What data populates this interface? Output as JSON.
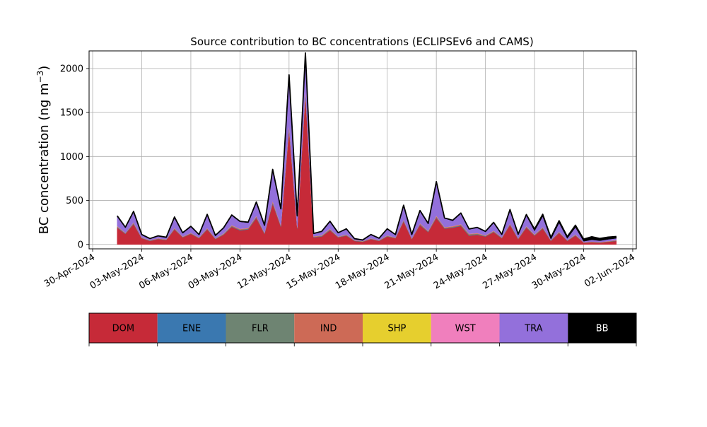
{
  "chart_data": {
    "type": "area",
    "stacked": true,
    "title": "Source contribution to BC concentrations (ECLIPSEv6 and CAMS)",
    "xlabel": "",
    "ylabel": "BC concentration (ng m",
    "ylabel_exponent": "−3",
    "ylabel_close": ")",
    "grid": true,
    "xlim": [
      "2024-04-30",
      "2024-06-02"
    ],
    "ylim": [
      -50,
      2200
    ],
    "yticks": [
      0,
      500,
      1000,
      1500,
      2000
    ],
    "xticks": [
      {
        "date": "2024-04-30",
        "label": "30-Apr-2024"
      },
      {
        "date": "2024-05-03",
        "label": "03-May-2024"
      },
      {
        "date": "2024-05-06",
        "label": "06-May-2024"
      },
      {
        "date": "2024-05-09",
        "label": "09-May-2024"
      },
      {
        "date": "2024-05-12",
        "label": "12-May-2024"
      },
      {
        "date": "2024-05-15",
        "label": "15-May-2024"
      },
      {
        "date": "2024-05-18",
        "label": "18-May-2024"
      },
      {
        "date": "2024-05-21",
        "label": "21-May-2024"
      },
      {
        "date": "2024-05-24",
        "label": "24-May-2024"
      },
      {
        "date": "2024-05-27",
        "label": "27-May-2024"
      },
      {
        "date": "2024-05-30",
        "label": "30-May-2024"
      },
      {
        "date": "2024-06-02",
        "label": "02-Jun-2024"
      }
    ],
    "x": [
      "2024-05-01 12:00",
      "2024-05-02 00:00",
      "2024-05-02 12:00",
      "2024-05-03 00:00",
      "2024-05-03 12:00",
      "2024-05-04 00:00",
      "2024-05-04 12:00",
      "2024-05-05 00:00",
      "2024-05-05 12:00",
      "2024-05-06 00:00",
      "2024-05-06 12:00",
      "2024-05-07 00:00",
      "2024-05-07 12:00",
      "2024-05-08 00:00",
      "2024-05-08 12:00",
      "2024-05-09 00:00",
      "2024-05-09 12:00",
      "2024-05-10 00:00",
      "2024-05-10 12:00",
      "2024-05-11 00:00",
      "2024-05-11 12:00",
      "2024-05-12 00:00",
      "2024-05-12 12:00",
      "2024-05-13 00:00",
      "2024-05-13 12:00",
      "2024-05-14 00:00",
      "2024-05-14 12:00",
      "2024-05-15 00:00",
      "2024-05-15 12:00",
      "2024-05-16 00:00",
      "2024-05-16 12:00",
      "2024-05-17 00:00",
      "2024-05-17 12:00",
      "2024-05-18 00:00",
      "2024-05-18 12:00",
      "2024-05-19 00:00",
      "2024-05-19 12:00",
      "2024-05-20 00:00",
      "2024-05-20 12:00",
      "2024-05-21 00:00",
      "2024-05-21 12:00",
      "2024-05-22 00:00",
      "2024-05-22 12:00",
      "2024-05-23 00:00",
      "2024-05-23 12:00",
      "2024-05-24 00:00",
      "2024-05-24 12:00",
      "2024-05-25 00:00",
      "2024-05-25 12:00",
      "2024-05-26 00:00",
      "2024-05-26 12:00",
      "2024-05-27 00:00",
      "2024-05-27 12:00",
      "2024-05-28 00:00",
      "2024-05-28 12:00",
      "2024-05-29 00:00",
      "2024-05-29 12:00",
      "2024-05-30 00:00",
      "2024-05-30 12:00",
      "2024-05-31 00:00",
      "2024-05-31 12:00",
      "2024-06-01 00:00"
    ],
    "series": [
      {
        "name": "DOM",
        "color": "#c62a38",
        "values": [
          190,
          120,
          230,
          70,
          40,
          60,
          50,
          170,
          80,
          120,
          70,
          170,
          60,
          110,
          200,
          160,
          170,
          300,
          120,
          460,
          200,
          1300,
          180,
          1700,
          80,
          90,
          160,
          80,
          100,
          40,
          30,
          60,
          40,
          90,
          70,
          260,
          60,
          220,
          140,
          300,
          180,
          190,
          210,
          100,
          110,
          90,
          140,
          70,
          220,
          60,
          190,
          100,
          180,
          40,
          130,
          40,
          100,
          20,
          25,
          20,
          30,
          40
        ]
      },
      {
        "name": "ENE",
        "color": "#3a78b0",
        "values": [
          5,
          3,
          5,
          2,
          2,
          2,
          2,
          4,
          2,
          3,
          2,
          4,
          2,
          3,
          4,
          4,
          4,
          6,
          3,
          8,
          4,
          14,
          4,
          18,
          3,
          3,
          4,
          2,
          3,
          2,
          2,
          2,
          2,
          3,
          2,
          5,
          2,
          5,
          3,
          6,
          4,
          4,
          4,
          3,
          3,
          3,
          3,
          2,
          4,
          2,
          4,
          3,
          4,
          2,
          3,
          2,
          3,
          1,
          1,
          1,
          1,
          2
        ]
      },
      {
        "name": "FLR",
        "color": "#6e8472",
        "values": [
          3,
          2,
          4,
          2,
          2,
          2,
          2,
          3,
          2,
          2,
          2,
          3,
          2,
          3,
          4,
          4,
          4,
          5,
          3,
          6,
          4,
          10,
          4,
          12,
          2,
          3,
          4,
          2,
          3,
          2,
          2,
          2,
          2,
          3,
          2,
          4,
          2,
          4,
          3,
          5,
          3,
          4,
          5,
          10,
          8,
          3,
          4,
          3,
          4,
          3,
          4,
          3,
          4,
          2,
          3,
          2,
          3,
          1,
          2,
          2,
          2,
          2
        ]
      },
      {
        "name": "IND",
        "color": "#cd6a56",
        "values": [
          8,
          5,
          8,
          4,
          3,
          4,
          3,
          7,
          4,
          5,
          4,
          7,
          4,
          6,
          8,
          7,
          7,
          10,
          6,
          14,
          8,
          25,
          8,
          32,
          5,
          6,
          8,
          4,
          5,
          3,
          3,
          4,
          3,
          5,
          4,
          8,
          4,
          8,
          6,
          10,
          7,
          8,
          9,
          6,
          6,
          5,
          6,
          4,
          8,
          4,
          7,
          5,
          7,
          3,
          6,
          3,
          5,
          2,
          3,
          3,
          3,
          4
        ]
      },
      {
        "name": "SHP",
        "color": "#e6cf2e",
        "values": [
          1,
          1,
          1,
          1,
          1,
          1,
          1,
          1,
          1,
          1,
          1,
          1,
          1,
          1,
          1,
          1,
          1,
          1,
          1,
          2,
          1,
          3,
          1,
          3,
          1,
          1,
          1,
          1,
          1,
          1,
          1,
          1,
          1,
          1,
          1,
          1,
          1,
          1,
          1,
          2,
          1,
          1,
          1,
          1,
          1,
          1,
          1,
          1,
          1,
          1,
          1,
          1,
          1,
          1,
          1,
          1,
          1,
          1,
          1,
          1,
          1,
          1
        ]
      },
      {
        "name": "WST",
        "color": "#f07fbd",
        "values": [
          2,
          1,
          2,
          1,
          1,
          1,
          1,
          2,
          1,
          1,
          1,
          2,
          1,
          2,
          2,
          2,
          2,
          3,
          2,
          4,
          2,
          8,
          2,
          10,
          1,
          2,
          2,
          1,
          2,
          1,
          1,
          1,
          1,
          2,
          1,
          2,
          1,
          2,
          2,
          3,
          2,
          2,
          2,
          2,
          2,
          2,
          2,
          1,
          2,
          1,
          2,
          2,
          2,
          1,
          2,
          1,
          2,
          1,
          1,
          1,
          1,
          1
        ]
      },
      {
        "name": "TRA",
        "color": "#9370db",
        "values": [
          110,
          60,
          120,
          30,
          15,
          25,
          20,
          120,
          40,
          70,
          30,
          150,
          30,
          60,
          110,
          80,
          60,
          150,
          80,
          350,
          180,
          550,
          120,
          380,
          30,
          40,
          80,
          40,
          60,
          15,
          10,
          40,
          20,
          70,
          30,
          160,
          40,
          140,
          80,
          380,
          100,
          60,
          120,
          50,
          60,
          40,
          90,
          30,
          150,
          40,
          120,
          40,
          120,
          10,
          100,
          20,
          80,
          10,
          20,
          15,
          20,
          20
        ]
      },
      {
        "name": "BB",
        "color": "#000000",
        "values": [
          6,
          4,
          6,
          3,
          3,
          3,
          3,
          5,
          3,
          4,
          3,
          5,
          3,
          4,
          6,
          5,
          5,
          8,
          4,
          10,
          6,
          18,
          6,
          22,
          3,
          4,
          5,
          3,
          4,
          2,
          2,
          3,
          2,
          4,
          3,
          6,
          3,
          6,
          4,
          8,
          5,
          6,
          6,
          4,
          4,
          4,
          5,
          4,
          8,
          6,
          12,
          20,
          25,
          20,
          25,
          20,
          25,
          25,
          35,
          25,
          25,
          20
        ]
      }
    ],
    "legend_placement": "bottom"
  }
}
